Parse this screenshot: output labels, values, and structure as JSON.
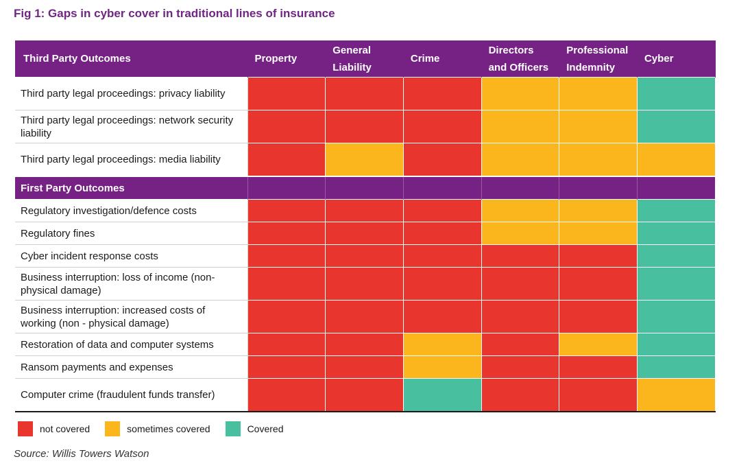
{
  "title": "Fig 1: Gaps in cyber cover in traditional lines of insurance",
  "source": "Source: Willis Towers Watson",
  "colors": {
    "not_covered": "#e8352e",
    "sometimes": "#fbb51d",
    "covered": "#48bf9f",
    "header_purple": "#762284",
    "title_purple": "#6f2683"
  },
  "legend": [
    {
      "key": "N",
      "label": "not covered"
    },
    {
      "key": "S",
      "label": "sometimes covered"
    },
    {
      "key": "C",
      "label": "Covered"
    }
  ],
  "chart_data": {
    "type": "heatmap",
    "title": "Fig 1: Gaps in cyber cover in traditional lines of insurance",
    "header_label": "Third Party Outcomes",
    "columns": [
      {
        "line1": "Property",
        "line2": ""
      },
      {
        "line1": "General",
        "line2": "Liability"
      },
      {
        "line1": "Crime",
        "line2": ""
      },
      {
        "line1": "Directors",
        "line2": "and Officers"
      },
      {
        "line1": "Professional",
        "line2": "Indemnity"
      },
      {
        "line1": "Cyber",
        "line2": ""
      }
    ],
    "value_legend": {
      "N": "not covered",
      "S": "sometimes covered",
      "C": "Covered"
    },
    "sections": [
      {
        "name": "Third Party Outcomes",
        "rows": [
          {
            "label": "Third party legal proceedings: privacy liability",
            "values": [
              "N",
              "N",
              "N",
              "S",
              "S",
              "C"
            ]
          },
          {
            "label": "Third party legal proceedings: network security liability",
            "values": [
              "N",
              "N",
              "N",
              "S",
              "S",
              "C"
            ]
          },
          {
            "label": "Third party legal proceedings: media liability",
            "values": [
              "N",
              "S",
              "N",
              "S",
              "S",
              "S"
            ]
          }
        ]
      },
      {
        "name": "First Party Outcomes",
        "rows": [
          {
            "label": "Regulatory investigation/defence costs",
            "values": [
              "N",
              "N",
              "N",
              "S",
              "S",
              "C"
            ]
          },
          {
            "label": "Regulatory fines",
            "values": [
              "N",
              "N",
              "N",
              "S",
              "S",
              "C"
            ]
          },
          {
            "label": "Cyber incident response costs",
            "values": [
              "N",
              "N",
              "N",
              "N",
              "N",
              "C"
            ]
          },
          {
            "label": "Business interruption: loss of income (non-physical damage)",
            "values": [
              "N",
              "N",
              "N",
              "N",
              "N",
              "C"
            ]
          },
          {
            "label": "Business interruption: increased costs of working (non - physical damage)",
            "values": [
              "N",
              "N",
              "N",
              "N",
              "N",
              "C"
            ]
          },
          {
            "label": "Restoration of data and computer systems",
            "values": [
              "N",
              "N",
              "S",
              "N",
              "S",
              "C"
            ]
          },
          {
            "label": "Ransom payments and expenses",
            "values": [
              "N",
              "N",
              "S",
              "N",
              "N",
              "C"
            ]
          },
          {
            "label": "Computer crime (fraudulent funds transfer)",
            "values": [
              "N",
              "N",
              "C",
              "N",
              "N",
              "S"
            ]
          }
        ]
      }
    ]
  }
}
